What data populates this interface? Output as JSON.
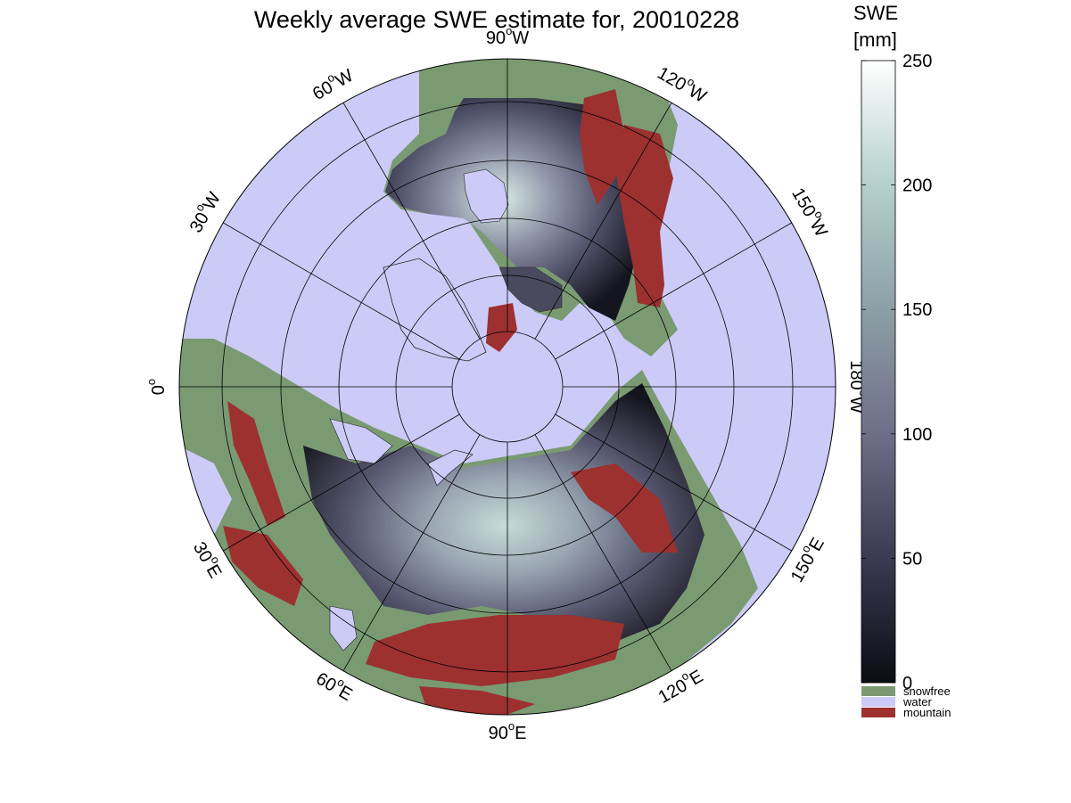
{
  "title": "Weekly average SWE estimate for, 20010228",
  "colorbar": {
    "title_line1": "SWE",
    "title_line2": "[mm]",
    "ticks": [
      {
        "value": 250,
        "label": "250"
      },
      {
        "value": 200,
        "label": "200"
      },
      {
        "value": 150,
        "label": "150"
      },
      {
        "value": 100,
        "label": "100"
      },
      {
        "value": 50,
        "label": "50"
      },
      {
        "value": 0,
        "label": "0"
      }
    ],
    "range": [
      0,
      250
    ],
    "categories": [
      {
        "label": "snowfree",
        "color": "#7a9a72"
      },
      {
        "label": "water",
        "color": "#cccbf7"
      },
      {
        "label": "mountain",
        "color": "#9c3130"
      }
    ],
    "gradient_colors": [
      "#0c0c14",
      "#3a3a52",
      "#6e6e88",
      "#8c9fa6",
      "#b4d0cc",
      "#ffffff"
    ]
  },
  "map": {
    "projection": "polar stereographic, north pole centered",
    "longitude_labels": [
      {
        "lon": "0",
        "label": "0",
        "sup": "o",
        "suffix": ""
      },
      {
        "lon": "30W",
        "label": "30",
        "sup": "o",
        "suffix": "W"
      },
      {
        "lon": "60W",
        "label": "60",
        "sup": "o",
        "suffix": "W"
      },
      {
        "lon": "90W",
        "label": "90",
        "sup": "o",
        "suffix": "W"
      },
      {
        "lon": "120W",
        "label": "120",
        "sup": "o",
        "suffix": "W"
      },
      {
        "lon": "150W",
        "label": "150",
        "sup": "o",
        "suffix": "W"
      },
      {
        "lon": "180W",
        "label": "180",
        "sup": "o",
        "suffix": "W"
      },
      {
        "lon": "150E",
        "label": "150",
        "sup": "o",
        "suffix": "E"
      },
      {
        "lon": "120E",
        "label": "120",
        "sup": "o",
        "suffix": "E"
      },
      {
        "lon": "90E",
        "label": "90",
        "sup": "o",
        "suffix": "E"
      },
      {
        "lon": "60E",
        "label": "60",
        "sup": "o",
        "suffix": "E"
      },
      {
        "lon": "30E",
        "label": "30",
        "sup": "o",
        "suffix": "E"
      }
    ],
    "colors": {
      "water": "#cccbf7",
      "snowfree": "#7a9a72",
      "mountain": "#9c3130",
      "snow_low": "#1a1a26",
      "snow_mid": "#5c5c78",
      "snow_high": "#b8d4cf"
    }
  }
}
